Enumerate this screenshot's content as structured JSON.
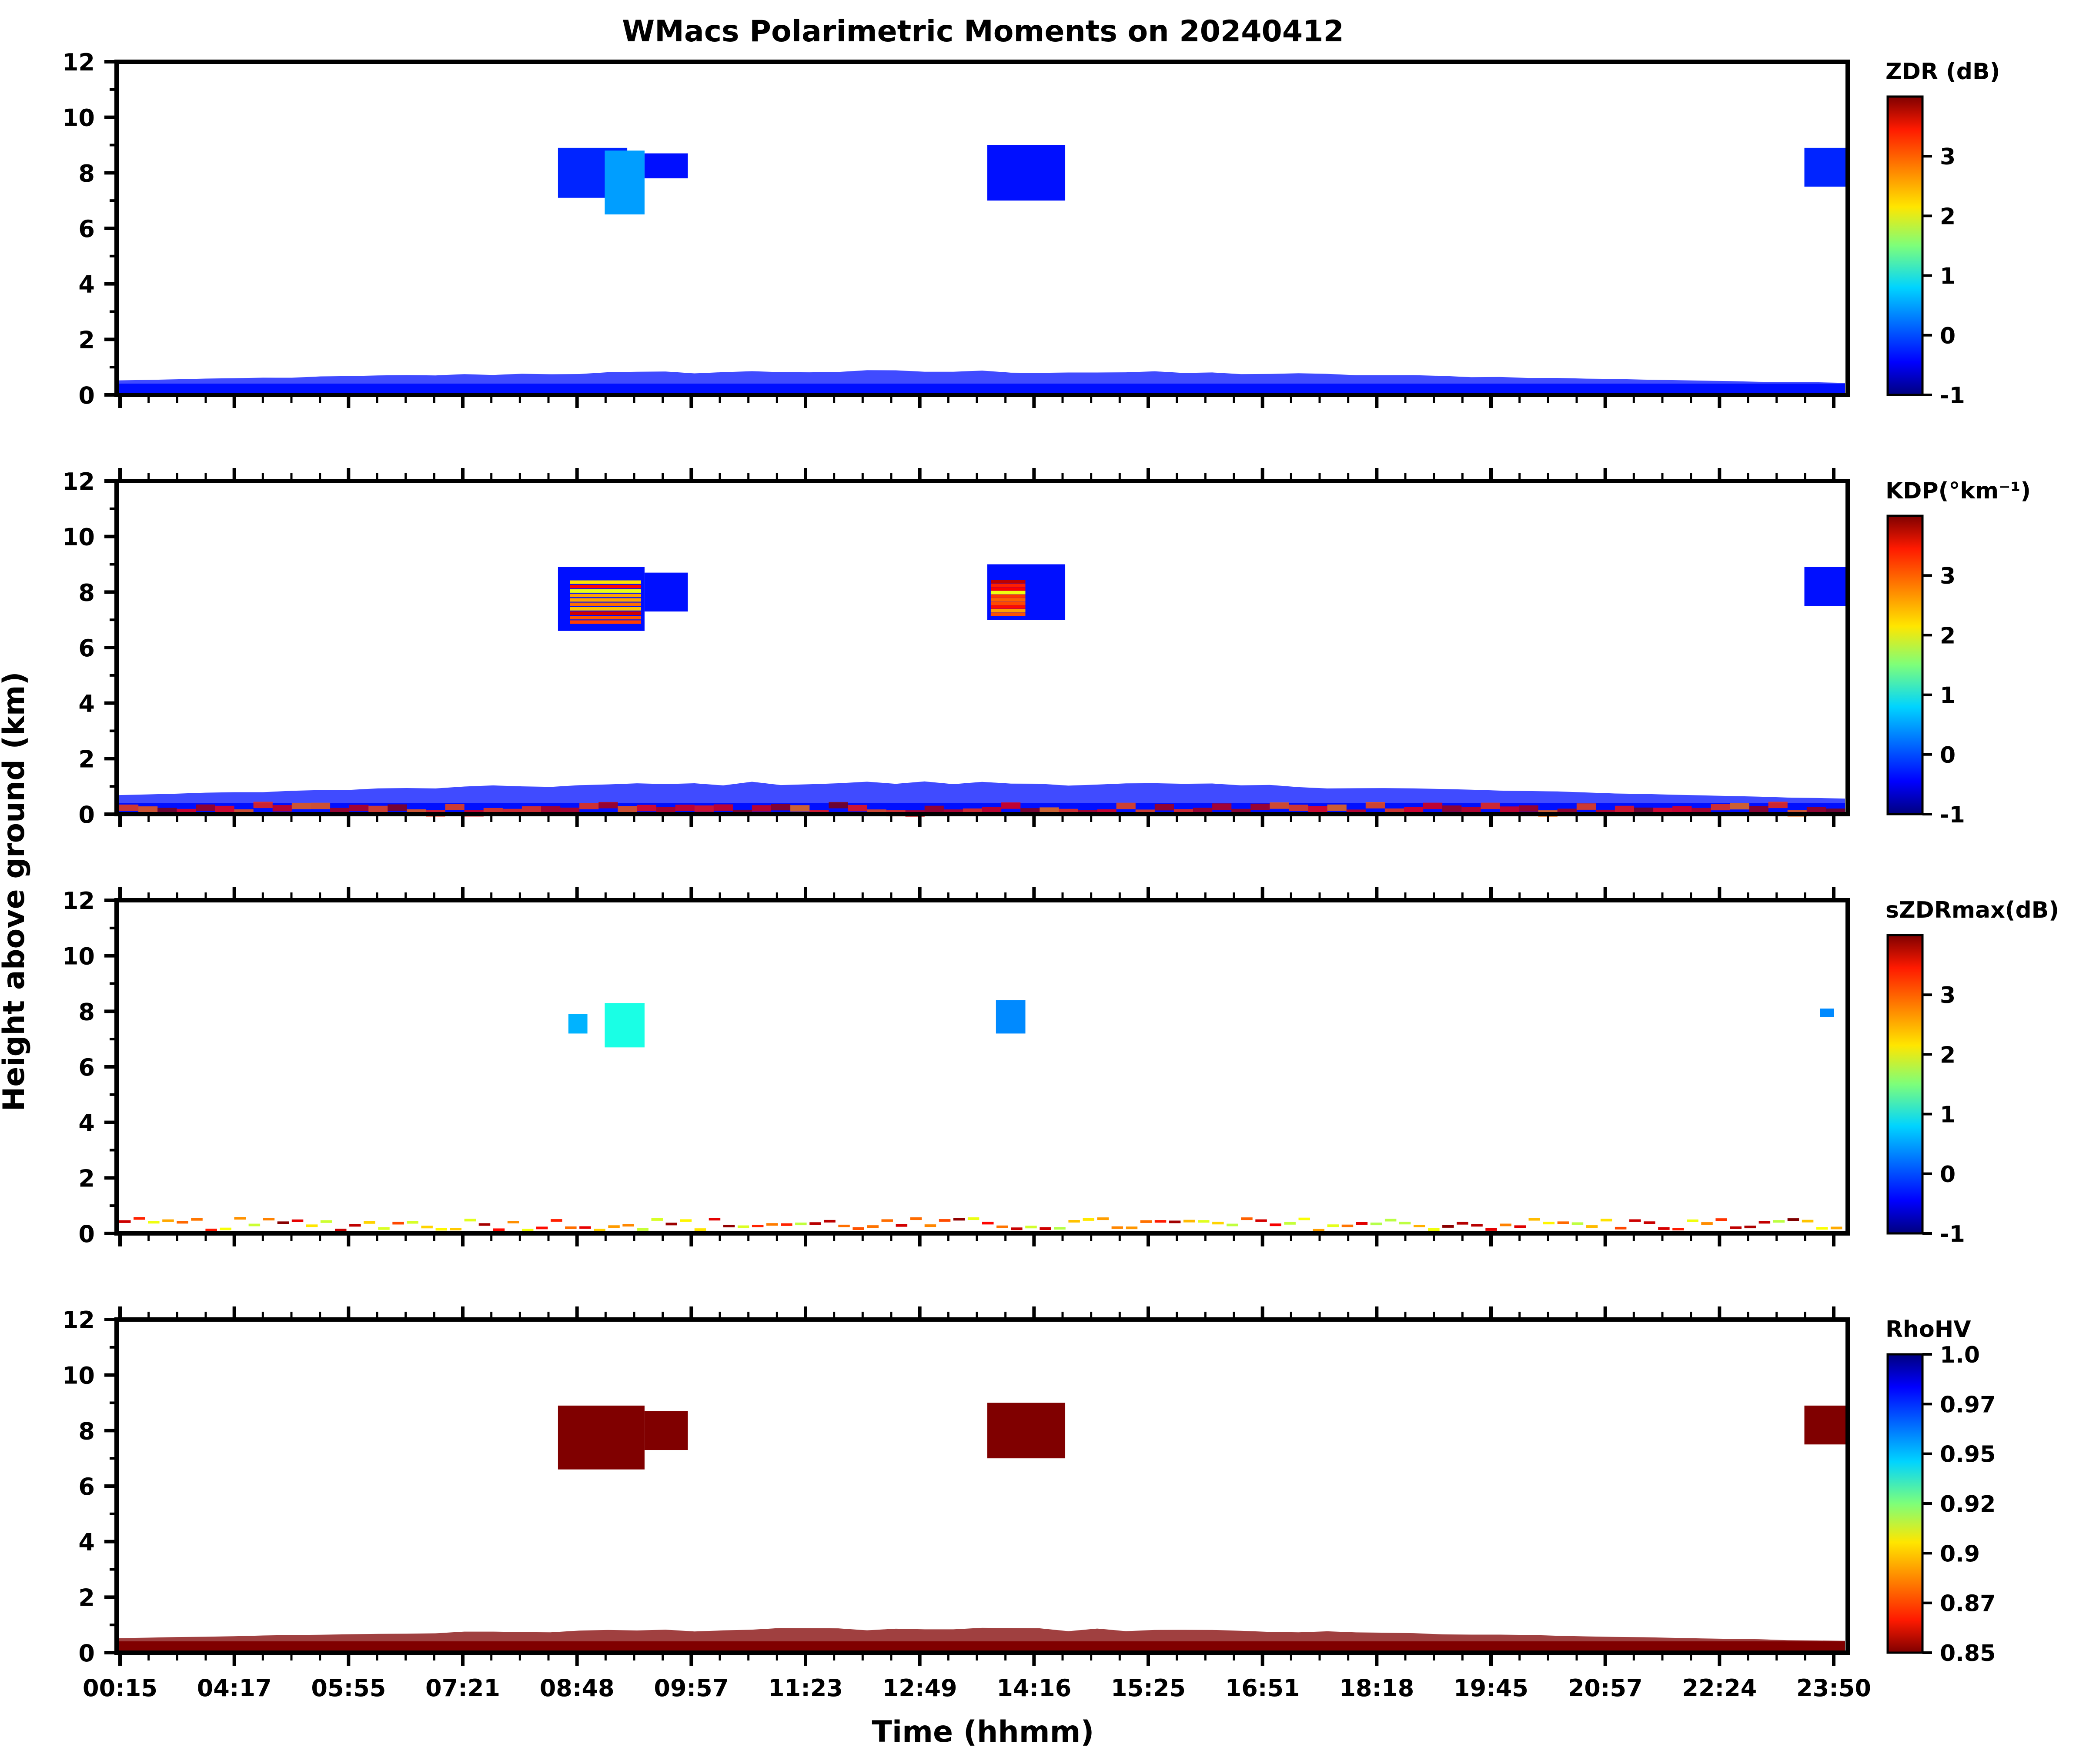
{
  "figure": {
    "title": "WMacs Polarimetric Moments on 20240412",
    "xlabel": "Time (hhmm)",
    "ylabel": "Height above ground (km)"
  },
  "chart_data": [
    {
      "type": "heatmap",
      "name": "ZDR",
      "colorbar_label": "ZDR (dB)",
      "colorbar_ticks": [
        "-1",
        "0",
        "1",
        "2",
        "3"
      ],
      "colorbar_range": [
        -1,
        4
      ],
      "colormap": "jet",
      "ylim": [
        0,
        12
      ],
      "yticks": [
        "0",
        "2",
        "4",
        "6",
        "8",
        "10",
        "12"
      ],
      "x_ticklabels": [],
      "features": [
        {
          "kind": "cloud",
          "t0": 0.255,
          "t1": 0.295,
          "h0": 7.1,
          "h1": 8.9,
          "value": -0.2
        },
        {
          "kind": "cloud",
          "t0": 0.282,
          "t1": 0.305,
          "h0": 6.5,
          "h1": 8.8,
          "value": 0.4
        },
        {
          "kind": "cloud",
          "t0": 0.305,
          "t1": 0.33,
          "h0": 7.8,
          "h1": 8.7,
          "value": -0.3
        },
        {
          "kind": "cloud",
          "t0": 0.503,
          "t1": 0.548,
          "h0": 7.0,
          "h1": 9.0,
          "value": -0.3
        },
        {
          "kind": "cloud",
          "t0": 0.975,
          "t1": 1.0,
          "h0": 7.5,
          "h1": 8.9,
          "value": -0.2
        },
        {
          "kind": "ground",
          "h_top": 0.9,
          "value": -0.3
        }
      ]
    },
    {
      "type": "heatmap",
      "name": "KDP",
      "colorbar_label": "KDP(°km⁻¹)",
      "colorbar_ticks": [
        "-1",
        "0",
        "1",
        "2",
        "3"
      ],
      "colorbar_range": [
        -1,
        4
      ],
      "colormap": "jet",
      "ylim": [
        0,
        12
      ],
      "yticks": [
        "0",
        "2",
        "4",
        "6",
        "8",
        "10",
        "12"
      ],
      "x_ticklabels": [],
      "features": [
        {
          "kind": "cloud",
          "t0": 0.255,
          "t1": 0.305,
          "h0": 6.6,
          "h1": 8.9,
          "value": -0.3
        },
        {
          "kind": "cloud",
          "t0": 0.305,
          "t1": 0.33,
          "h0": 7.3,
          "h1": 8.7,
          "value": -0.3
        },
        {
          "kind": "cloud",
          "t0": 0.503,
          "t1": 0.548,
          "h0": 7.0,
          "h1": 9.0,
          "value": -0.3
        },
        {
          "kind": "cloud",
          "t0": 0.975,
          "t1": 1.0,
          "h0": 7.5,
          "h1": 8.9,
          "value": -0.3
        },
        {
          "kind": "streaks",
          "t0": 0.262,
          "t1": 0.303,
          "h0": 6.9,
          "h1": 8.5
        },
        {
          "kind": "streaks",
          "t0": 0.505,
          "t1": 0.525,
          "h0": 7.2,
          "h1": 8.5
        },
        {
          "kind": "ground",
          "h_top": 1.2,
          "value": -0.3
        },
        {
          "kind": "ground-hot",
          "h_top": 0.45
        }
      ]
    },
    {
      "type": "heatmap",
      "name": "sZDRmax",
      "colorbar_label": "sZDRmax(dB)",
      "colorbar_ticks": [
        "-1",
        "0",
        "1",
        "2",
        "3"
      ],
      "colorbar_range": [
        -1,
        4
      ],
      "colormap": "jet",
      "ylim": [
        0,
        12
      ],
      "yticks": [
        "0",
        "2",
        "4",
        "6",
        "8",
        "10",
        "12"
      ],
      "x_ticklabels": [],
      "features": [
        {
          "kind": "cloud",
          "t0": 0.261,
          "t1": 0.272,
          "h0": 7.2,
          "h1": 7.9,
          "value": 0.5
        },
        {
          "kind": "cloud",
          "t0": 0.282,
          "t1": 0.305,
          "h0": 6.7,
          "h1": 8.3,
          "value": 1.0
        },
        {
          "kind": "cloud",
          "t0": 0.508,
          "t1": 0.525,
          "h0": 7.2,
          "h1": 8.4,
          "value": 0.3
        },
        {
          "kind": "cloud",
          "t0": 0.984,
          "t1": 0.992,
          "h0": 7.8,
          "h1": 8.1,
          "value": 0.3
        },
        {
          "kind": "ground-speckle",
          "h_top": 0.5
        }
      ]
    },
    {
      "type": "heatmap",
      "name": "RhoHV",
      "colorbar_label": "RhoHV",
      "colorbar_ticks": [
        "0.85",
        "0.87",
        "0.9",
        "0.92",
        "0.95",
        "0.97",
        "1.0"
      ],
      "colorbar_range": [
        0.85,
        1.0
      ],
      "colormap": "jet_r",
      "ylim": [
        0,
        12
      ],
      "yticks": [
        "0",
        "2",
        "4",
        "6",
        "8",
        "10",
        "12"
      ],
      "x_ticklabels": [
        "00:15",
        "04:17",
        "05:55",
        "07:21",
        "08:48",
        "09:57",
        "11:23",
        "12:49",
        "14:16",
        "15:25",
        "16:51",
        "18:18",
        "19:45",
        "20:57",
        "22:24",
        "23:50"
      ],
      "features": [
        {
          "kind": "cloud",
          "t0": 0.255,
          "t1": 0.305,
          "h0": 6.6,
          "h1": 8.9,
          "value": 0.85
        },
        {
          "kind": "cloud",
          "t0": 0.305,
          "t1": 0.33,
          "h0": 7.3,
          "h1": 8.7,
          "value": 0.85
        },
        {
          "kind": "cloud",
          "t0": 0.503,
          "t1": 0.548,
          "h0": 7.0,
          "h1": 9.0,
          "value": 0.85
        },
        {
          "kind": "cloud",
          "t0": 0.975,
          "t1": 1.0,
          "h0": 7.5,
          "h1": 8.9,
          "value": 0.85
        },
        {
          "kind": "ground",
          "h_top": 0.9,
          "value": 0.85
        }
      ]
    }
  ]
}
